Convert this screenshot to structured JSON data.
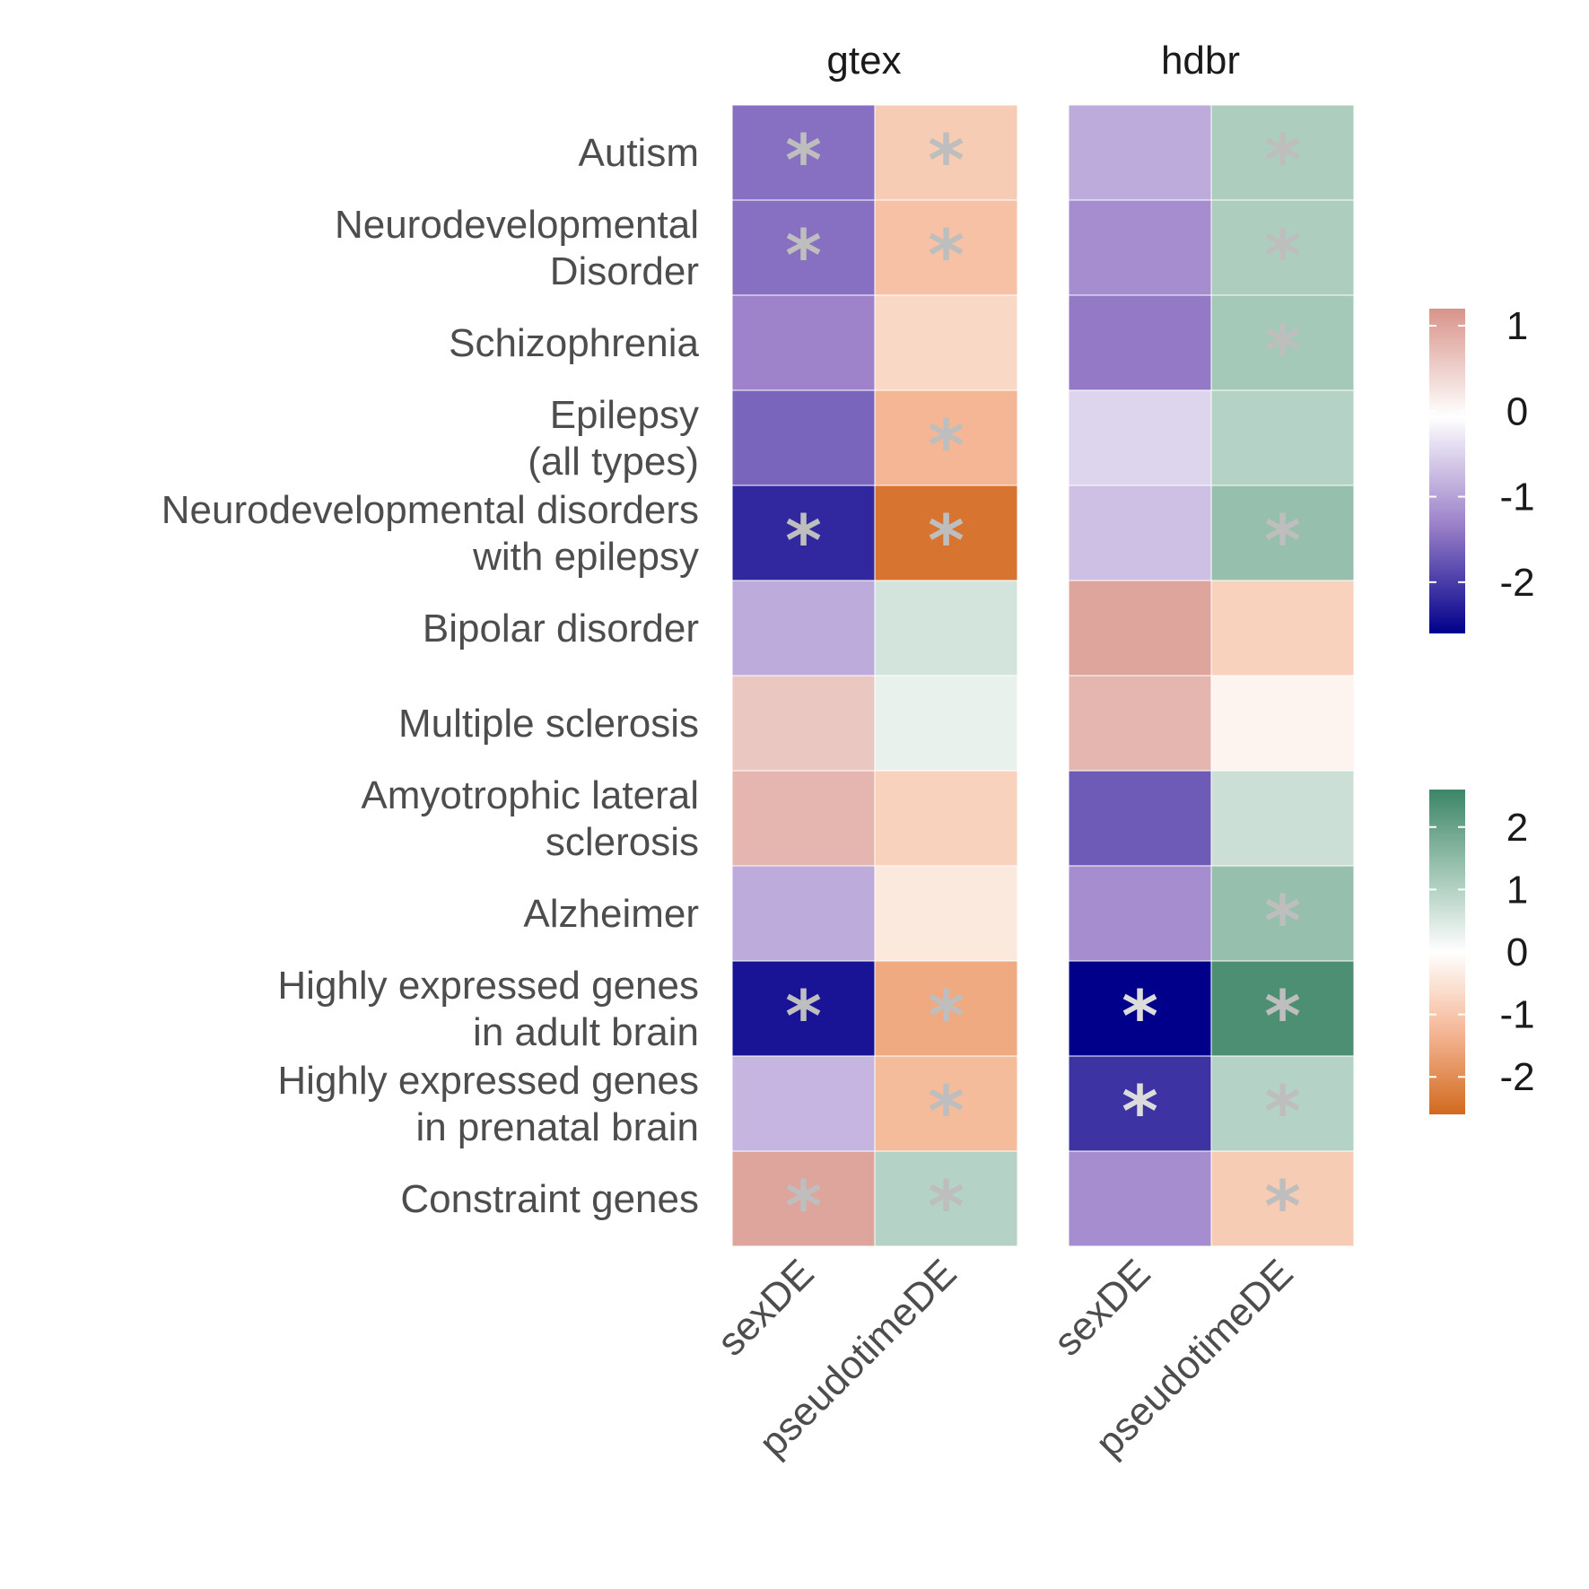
{
  "chart_data": {
    "type": "heatmap",
    "facets": [
      {
        "name": "gtex",
        "columns": [
          "sexDE",
          "pseudotimeDE"
        ],
        "values": [
          [
            -1.5,
            -0.9
          ],
          [
            -1.5,
            -1.1
          ],
          [
            -1.3,
            -0.7
          ],
          [
            -1.6,
            -1.3
          ],
          [
            -2.2,
            -2.4
          ],
          [
            -0.9,
            0.6
          ],
          [
            0.6,
            0.3
          ],
          [
            0.8,
            -0.8
          ],
          [
            -0.9,
            -0.4
          ],
          [
            -2.4,
            -1.5
          ],
          [
            -0.8,
            -1.2
          ],
          [
            1.0,
            1.0
          ]
        ],
        "significant": [
          [
            true,
            true
          ],
          [
            true,
            true
          ],
          [
            false,
            false
          ],
          [
            false,
            true
          ],
          [
            true,
            true
          ],
          [
            false,
            false
          ],
          [
            false,
            false
          ],
          [
            false,
            false
          ],
          [
            false,
            false
          ],
          [
            true,
            true
          ],
          [
            false,
            true
          ],
          [
            true,
            true
          ]
        ]
      },
      {
        "name": "hdbr",
        "columns": [
          "sexDE",
          "pseudotimeDE"
        ],
        "values": [
          [
            -0.9,
            1.1
          ],
          [
            -1.2,
            1.1
          ],
          [
            -1.4,
            1.2
          ],
          [
            -0.5,
            1.0
          ],
          [
            -0.7,
            1.4
          ],
          [
            1.0,
            -0.8
          ],
          [
            0.8,
            -0.2
          ],
          [
            -1.7,
            0.7
          ],
          [
            -1.2,
            1.4
          ],
          [
            -2.6,
            2.4
          ],
          [
            -2.1,
            1.0
          ],
          [
            -1.2,
            -0.9
          ]
        ],
        "significant": [
          [
            false,
            true
          ],
          [
            false,
            true
          ],
          [
            false,
            true
          ],
          [
            false,
            false
          ],
          [
            false,
            true
          ],
          [
            false,
            false
          ],
          [
            false,
            false
          ],
          [
            false,
            false
          ],
          [
            false,
            true
          ],
          [
            true,
            true
          ],
          [
            true,
            true
          ],
          [
            false,
            true
          ]
        ]
      }
    ],
    "rows": [
      [
        "Autism"
      ],
      [
        "Neurodevelopmental",
        "Disorder"
      ],
      [
        "Schizophrenia"
      ],
      [
        "Epilepsy",
        "(all types)"
      ],
      [
        "Neurodevelopmental disorders",
        "with epilepsy"
      ],
      [
        "Bipolar disorder"
      ],
      [
        "Multiple sclerosis"
      ],
      [
        "Amyotrophic lateral",
        "sclerosis"
      ],
      [
        "Alzheimer"
      ],
      [
        "Highly expressed genes",
        "in adult brain"
      ],
      [
        "Highly expressed genes",
        "in prenatal brain"
      ],
      [
        "Constraint genes"
      ]
    ],
    "significance_marker": "*",
    "legends": [
      {
        "ticks": [
          "1",
          "0",
          "-1",
          "-2"
        ],
        "tick_values": [
          1,
          0,
          -1,
          -2
        ],
        "range": [
          -2.6,
          1.2
        ],
        "colors": [
          "#00008b",
          "#9b80c9",
          "#ffffff",
          "#d8948a"
        ]
      },
      {
        "ticks": [
          "2",
          "1",
          "0",
          "-1",
          "-2"
        ],
        "tick_values": [
          2,
          1,
          0,
          -1,
          -2
        ],
        "range": [
          -2.6,
          2.6
        ],
        "colors": [
          "#d2691e",
          "#f4b694",
          "#ffffff",
          "#9ec4b3",
          "#3d8567"
        ]
      }
    ],
    "colors": {
      "low_negative": "#00008b",
      "mid_negative": "#9b80c9",
      "high_positive_sex": "#d8948a",
      "low_pseudotime": "#d2691e",
      "mid_pseudotime": "#f4b694",
      "high_pseudotime": "#3d8567",
      "star_gray": "#bebebe",
      "star_light": "#dcdcdc"
    }
  }
}
